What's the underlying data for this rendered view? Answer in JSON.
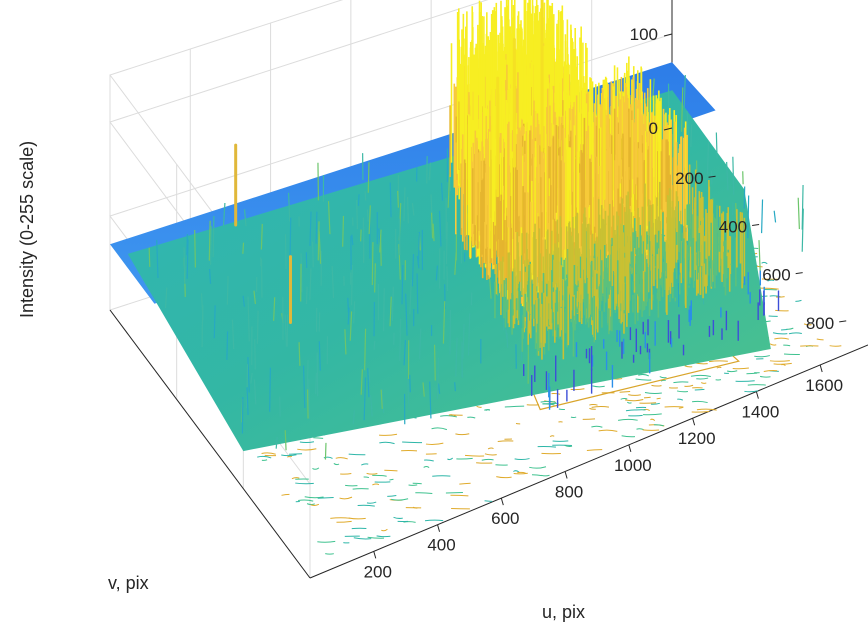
{
  "chart_data": {
    "type": "surface",
    "title": "",
    "xlabel": "u, pix",
    "ylabel": "v, pix",
    "zlabel": "Intensity (0-255 scale)",
    "x_ticks": [
      "200",
      "400",
      "600",
      "800",
      "1000",
      "1200",
      "1400",
      "1600"
    ],
    "y_ticks": [
      "200",
      "400",
      "600",
      "800"
    ],
    "z_ticks": [
      "0",
      "100",
      "200"
    ],
    "xlim": [
      0,
      1750
    ],
    "ylim": [
      0,
      900
    ],
    "zlim": [
      0,
      250
    ],
    "colormap": [
      "#3e26a8",
      "#2e6ff5",
      "#1bb2d8",
      "#40c59a",
      "#a6c430",
      "#f7ba3c",
      "#f9fb15"
    ],
    "grid": true,
    "features": [
      {
        "u": 1250,
        "v": 140,
        "intensity": 230
      },
      {
        "u": 1150,
        "v": 160,
        "intensity": 205
      },
      {
        "u": 1050,
        "v": 230,
        "intensity": 195
      },
      {
        "u": 1300,
        "v": 350,
        "intensity": 175
      },
      {
        "u": 300,
        "v": 380,
        "intensity": 140
      },
      {
        "u": 350,
        "v": 60,
        "intensity": 155
      }
    ]
  }
}
